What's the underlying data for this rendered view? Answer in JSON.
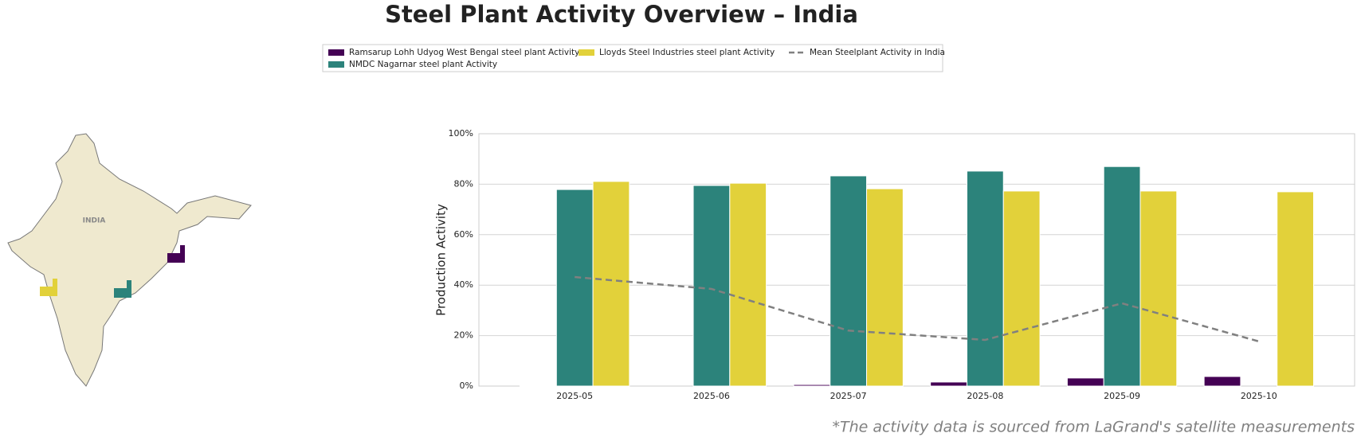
{
  "chart_data": {
    "type": "bar",
    "title": "Steel Plant Activity Overview – India",
    "y_label": "Production Activity",
    "annotation": "*The activity data is sourced from LaGrand's satellite measurements",
    "map_label": "INDIA",
    "categories": [
      "2025-05",
      "2025-06",
      "2025-07",
      "2025-08",
      "2025-09",
      "2025-10"
    ],
    "series": [
      {
        "name": "Ramsarup Lohh Udyog West Bengal steel plant Activity",
        "color": "#440154",
        "values": [
          0.3,
          0,
          0.6,
          1.6,
          3.2,
          3.8
        ]
      },
      {
        "name": "NMDC Nagarnar steel plant Activity",
        "color": "#2c837b",
        "values": [
          77.9,
          79.5,
          83.3,
          85.2,
          87,
          null
        ]
      },
      {
        "name": "Lloyds Steel Industries steel plant Activity",
        "color": "#e2d13a",
        "values": [
          81.1,
          80.4,
          78.2,
          77.3,
          77.3,
          77
        ]
      },
      {
        "name": "Mean Steelplant Activity in India",
        "color": "#808080",
        "type": "line",
        "dashed": true,
        "values": [
          43.2,
          38.5,
          22,
          18.3,
          32.8,
          17.7
        ]
      }
    ],
    "ylim": [
      0,
      100
    ],
    "yticks": [
      {
        "value": 0,
        "label": "0%"
      },
      {
        "value": 20,
        "label": "20%"
      },
      {
        "value": 40,
        "label": "40%"
      },
      {
        "value": 60,
        "label": "60%"
      },
      {
        "value": 80,
        "label": "80%"
      },
      {
        "value": 100,
        "label": "100%"
      }
    ],
    "grid": true
  }
}
